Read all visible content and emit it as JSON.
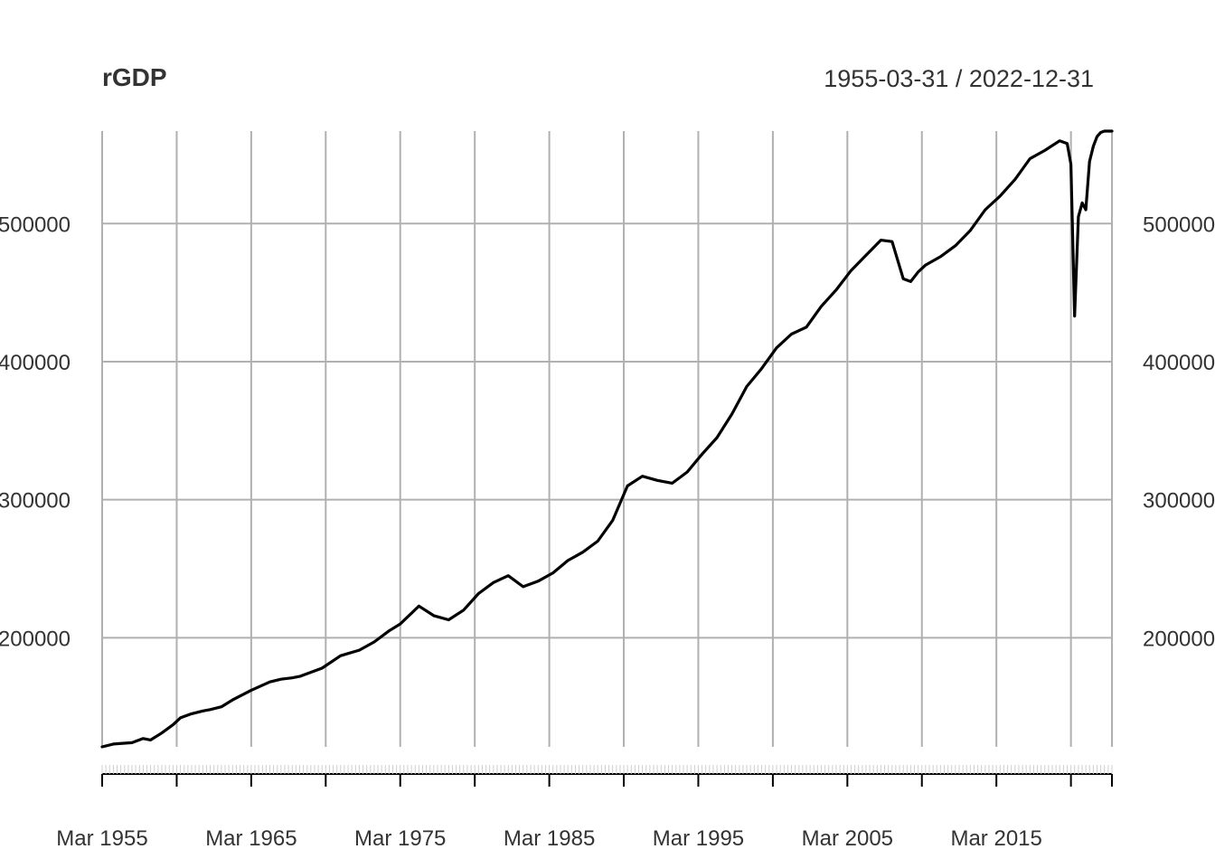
{
  "chart_data": {
    "type": "line",
    "title": "rGDP",
    "date_range": "1955-03-31 / 2022-12-31",
    "x_ticks": [
      "Mar 1955",
      "Mar 1965",
      "Mar 1975",
      "Mar 1985",
      "Mar 1995",
      "Mar 2005",
      "Mar 2015"
    ],
    "y_ticks": [
      "200000",
      "300000",
      "400000",
      "500000"
    ],
    "y_tick_values": [
      200000,
      300000,
      400000,
      500000
    ],
    "xlim": [
      "1955-03-31",
      "2022-12-31"
    ],
    "ylim": [
      121000,
      567000
    ],
    "grid": true,
    "line_color": "#000000",
    "grid_color": "#b0b0b0",
    "series": [
      {
        "x": [
          "1955-03-31",
          "1955-12-31",
          "1957-03-31",
          "1957-12-31",
          "1958-06-30",
          "1959-03-31",
          "1959-12-31",
          "1960-06-30",
          "1961-03-31",
          "1961-12-31",
          "1962-06-30",
          "1963-03-31",
          "1963-12-31",
          "1965-03-31",
          "1966-06-30",
          "1967-03-31",
          "1967-12-31",
          "1968-06-30",
          "1969-12-31",
          "1971-03-31",
          "1972-06-30",
          "1973-06-30",
          "1974-06-30",
          "1975-03-31",
          "1976-06-30",
          "1977-06-30",
          "1978-06-30",
          "1979-06-30",
          "1980-06-30",
          "1981-06-30",
          "1982-06-30",
          "1983-06-30",
          "1984-06-30",
          "1985-06-30",
          "1986-06-30",
          "1987-06-30",
          "1988-06-30",
          "1989-06-30",
          "1990-06-30",
          "1991-06-30",
          "1992-06-30",
          "1993-06-30",
          "1994-06-30",
          "1995-06-30",
          "1996-06-30",
          "1997-06-30",
          "1998-06-30",
          "1999-06-30",
          "2000-06-30",
          "2001-06-30",
          "2002-06-30",
          "2003-06-30",
          "2004-06-30",
          "2005-06-30",
          "2006-06-30",
          "2007-06-30",
          "2008-03-31",
          "2008-12-31",
          "2009-06-30",
          "2009-12-31",
          "2010-06-30",
          "2011-06-30",
          "2012-06-30",
          "2013-06-30",
          "2014-06-30",
          "2015-06-30",
          "2016-06-30",
          "2017-06-30",
          "2018-06-30",
          "2019-06-30",
          "2019-12-31",
          "2020-03-31",
          "2020-06-30",
          "2020-09-30",
          "2020-12-31",
          "2021-03-31",
          "2021-06-30",
          "2021-09-30",
          "2021-12-31",
          "2022-03-31",
          "2022-06-30",
          "2022-09-30",
          "2022-12-31"
        ],
        "y": [
          121000,
          123000,
          124000,
          127000,
          126000,
          131000,
          137000,
          142000,
          145000,
          147000,
          148000,
          150000,
          155000,
          162000,
          168000,
          170000,
          171000,
          172000,
          178000,
          187000,
          191000,
          197000,
          205000,
          210000,
          223000,
          216000,
          213000,
          220000,
          232000,
          240000,
          245000,
          237000,
          241000,
          247000,
          256000,
          262000,
          270000,
          285000,
          310000,
          317000,
          314000,
          312000,
          320000,
          333000,
          345000,
          362000,
          382000,
          395000,
          410000,
          420000,
          425000,
          440000,
          452000,
          466000,
          477000,
          488000,
          487000,
          460000,
          458000,
          465000,
          470000,
          476000,
          484000,
          495000,
          510000,
          520000,
          532000,
          547000,
          553000,
          560000,
          558000,
          543000,
          433000,
          505000,
          515000,
          510000,
          545000,
          556000,
          563000,
          566000,
          567000,
          567000,
          567000
        ]
      }
    ]
  }
}
